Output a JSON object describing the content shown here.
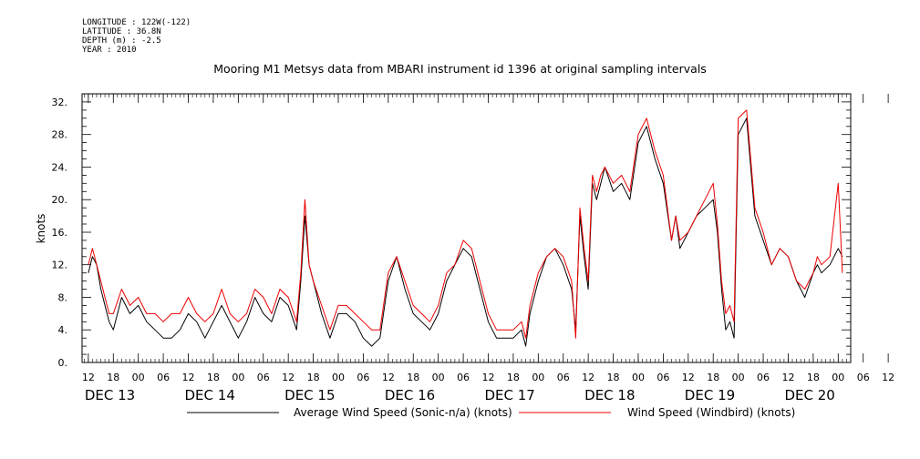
{
  "meta": {
    "longitude": "LONGITUDE : 122W(-122)",
    "latitude": "LATITUDE : 36.8N",
    "depth": "DEPTH (m) : -2.5",
    "year": "YEAR : 2010"
  },
  "chart_data": {
    "type": "line",
    "title": "Mooring M1 Metsys data from MBARI instrument id 1396 at original sampling intervals",
    "ylabel": "knots",
    "xlabel": "",
    "ylim": [
      0,
      33
    ],
    "yticks": [
      "0.",
      "4.",
      "8.",
      "12.",
      "16.",
      "20.",
      "24.",
      "28.",
      "32."
    ],
    "ytick_values": [
      0,
      4,
      8,
      12,
      16,
      20,
      24,
      28,
      32
    ],
    "xlim_hours": [
      -1.5,
      183
    ],
    "hour_ticks": [
      "12",
      "18",
      "00",
      "06",
      "12",
      "18",
      "00",
      "06",
      "12",
      "18",
      "00",
      "06",
      "12",
      "18",
      "00",
      "06",
      "12",
      "18",
      "00",
      "06",
      "12",
      "18",
      "00",
      "06",
      "12",
      "18",
      "00",
      "06",
      "12",
      "18",
      "00",
      "06",
      "12"
    ],
    "day_labels": [
      "DEC 13",
      "DEC 14",
      "DEC 15",
      "DEC 16",
      "DEC 17",
      "DEC 18",
      "DEC 19",
      "DEC 20"
    ],
    "x_start": "2010-12-13 12:00",
    "grid": false,
    "legend_position": "bottom",
    "series": [
      {
        "name": "Average Wind Speed (Sonic-n/a) (knots)",
        "color": "#000000",
        "x": [
          0,
          1,
          2,
          3,
          4,
          5,
          6,
          8,
          10,
          12,
          14,
          16,
          18,
          20,
          22,
          24,
          26,
          28,
          30,
          32,
          34,
          36,
          38,
          40,
          42,
          44,
          46,
          48,
          50,
          51,
          52,
          53,
          54,
          56,
          58,
          60,
          62,
          64,
          66,
          68,
          70,
          72,
          74,
          76,
          78,
          80,
          82,
          84,
          86,
          88,
          90,
          92,
          94,
          96,
          98,
          100,
          102,
          104,
          105,
          106,
          108,
          110,
          112,
          114,
          116,
          117,
          118,
          119,
          120,
          121,
          122,
          123,
          124,
          126,
          128,
          130,
          132,
          134,
          136,
          138,
          140,
          141,
          142,
          144,
          146,
          148,
          150,
          151,
          152,
          153,
          154,
          155,
          156,
          158,
          160,
          162,
          164,
          166,
          168,
          170,
          172,
          174,
          175,
          176,
          178,
          180,
          181
        ],
        "y": [
          11,
          13,
          12,
          9,
          7,
          5,
          4,
          8,
          6,
          7,
          5,
          4,
          3,
          3,
          4,
          6,
          5,
          3,
          5,
          7,
          5,
          3,
          5,
          8,
          6,
          5,
          8,
          7,
          4,
          10,
          18,
          12,
          10,
          6,
          3,
          6,
          6,
          5,
          3,
          2,
          3,
          10,
          13,
          9,
          6,
          5,
          4,
          6,
          10,
          12,
          14,
          13,
          9,
          5,
          3,
          3,
          3,
          4,
          2,
          6,
          10,
          13,
          14,
          12,
          9,
          4,
          18,
          13,
          9,
          22,
          20,
          22,
          24,
          21,
          22,
          20,
          27,
          29,
          25,
          22,
          15,
          18,
          14,
          16,
          18,
          19,
          20,
          16,
          9,
          4,
          5,
          3,
          28,
          30,
          18,
          15,
          12,
          14,
          13,
          10,
          8,
          11,
          12,
          11,
          12,
          14,
          13
        ]
      },
      {
        "name": "Wind Speed (Windbird) (knots)",
        "color": "#ee0000",
        "x": [
          0,
          1,
          2,
          3,
          4,
          5,
          6,
          8,
          10,
          12,
          14,
          16,
          18,
          20,
          22,
          24,
          26,
          28,
          30,
          32,
          34,
          36,
          38,
          40,
          42,
          44,
          46,
          48,
          50,
          51,
          52,
          53,
          54,
          56,
          58,
          60,
          62,
          64,
          66,
          68,
          70,
          72,
          74,
          76,
          78,
          80,
          82,
          84,
          86,
          88,
          90,
          92,
          94,
          96,
          98,
          100,
          102,
          104,
          105,
          106,
          108,
          110,
          112,
          114,
          116,
          117,
          118,
          119,
          120,
          121,
          122,
          123,
          124,
          126,
          128,
          130,
          132,
          134,
          136,
          138,
          140,
          141,
          142,
          144,
          146,
          148,
          150,
          151,
          152,
          153,
          154,
          155,
          156,
          158,
          160,
          162,
          164,
          166,
          168,
          170,
          172,
          174,
          175,
          176,
          178,
          180,
          181
        ],
        "y": [
          12,
          14,
          12,
          10,
          8,
          6,
          6,
          9,
          7,
          8,
          6,
          6,
          5,
          6,
          6,
          8,
          6,
          5,
          6,
          9,
          6,
          5,
          6,
          9,
          8,
          6,
          9,
          8,
          5,
          11,
          20,
          12,
          10,
          7,
          4,
          7,
          7,
          6,
          5,
          4,
          4,
          11,
          13,
          10,
          7,
          6,
          5,
          7,
          11,
          12,
          15,
          14,
          10,
          6,
          4,
          4,
          4,
          5,
          3,
          7,
          11,
          13,
          14,
          13,
          10,
          3,
          19,
          14,
          10,
          23,
          21,
          23,
          24,
          22,
          23,
          21,
          28,
          30,
          26,
          23,
          15,
          18,
          15,
          16,
          18,
          20,
          22,
          17,
          10,
          6,
          7,
          5,
          30,
          31,
          19,
          16,
          12,
          14,
          13,
          10,
          9,
          11,
          13,
          12,
          13,
          22,
          11
        ]
      }
    ]
  }
}
